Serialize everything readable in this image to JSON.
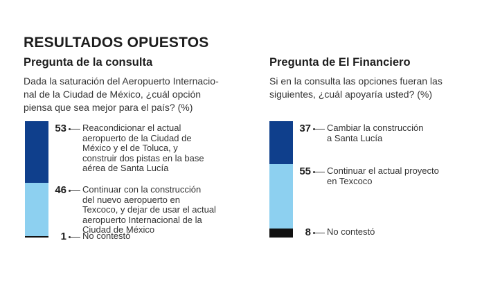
{
  "title": "RESULTADOS OPUESTOS",
  "colors": {
    "dark_blue": "#0f3f8c",
    "light_blue": "#8dd0f0",
    "black": "#111111"
  },
  "chart_data": [
    {
      "type": "bar",
      "stacked": true,
      "title": "Pregunta de la consulta",
      "subtitle": "Dada la saturación del Aeropuerto Internacio-nal de la Ciudad de México, ¿cuál opción piensa que sea mejor para el país? (%)",
      "subtitle_lines": [
        "Dada la saturación del Aeropuerto Internacio-",
        "nal de la Ciudad de México, ¿cuál opción",
        "piensa que sea mejor para el país? (%)"
      ],
      "unit": "%",
      "segments": [
        {
          "value": 53,
          "color": "#0f3f8c",
          "label": "Reacondicionar el actual aeropuerto de la Ciudad de México y el de Toluca, y construir dos pistas en la base aérea de Santa Lucía",
          "label_lines": [
            "Reacondicionar el actual",
            "aeropuerto de la Ciudad de",
            "México y el de Toluca, y",
            "construir dos pistas en la base",
            "aérea de Santa Lucía"
          ]
        },
        {
          "value": 46,
          "color": "#8dd0f0",
          "label": "Continuar con la construcción del nuevo aeropuerto en Texcoco, y dejar de usar el actual aeropuerto Internacional de la Ciudad de México",
          "label_lines": [
            "Continuar con la construcción",
            "del nuevo aeropuerto en",
            "Texcoco, y dejar de usar el actual",
            "aeropuerto Internacional de la",
            "Ciudad de México"
          ]
        },
        {
          "value": 1,
          "color": "#111111",
          "label": "No contestó",
          "label_lines": [
            "No contestó"
          ]
        }
      ]
    },
    {
      "type": "bar",
      "stacked": true,
      "title": "Pregunta de El Financiero",
      "subtitle": "Si en la consulta las opciones fueran las siguientes, ¿cuál apoyaría usted? (%)",
      "subtitle_lines": [
        "Si en la consulta las opciones fueran las",
        "siguientes, ¿cuál apoyaría usted? (%)"
      ],
      "unit": "%",
      "segments": [
        {
          "value": 37,
          "color": "#0f3f8c",
          "label": "Cambiar la construcción a Santa Lucía",
          "label_lines": [
            "Cambiar la construcción",
            "a Santa Lucía"
          ]
        },
        {
          "value": 55,
          "color": "#8dd0f0",
          "label": "Continuar el actual proyecto en Texcoco",
          "label_lines": [
            "Continuar el actual proyecto",
            "en Texcoco"
          ]
        },
        {
          "value": 8,
          "color": "#111111",
          "label": "No contestó",
          "label_lines": [
            "No contestó"
          ]
        }
      ]
    }
  ]
}
